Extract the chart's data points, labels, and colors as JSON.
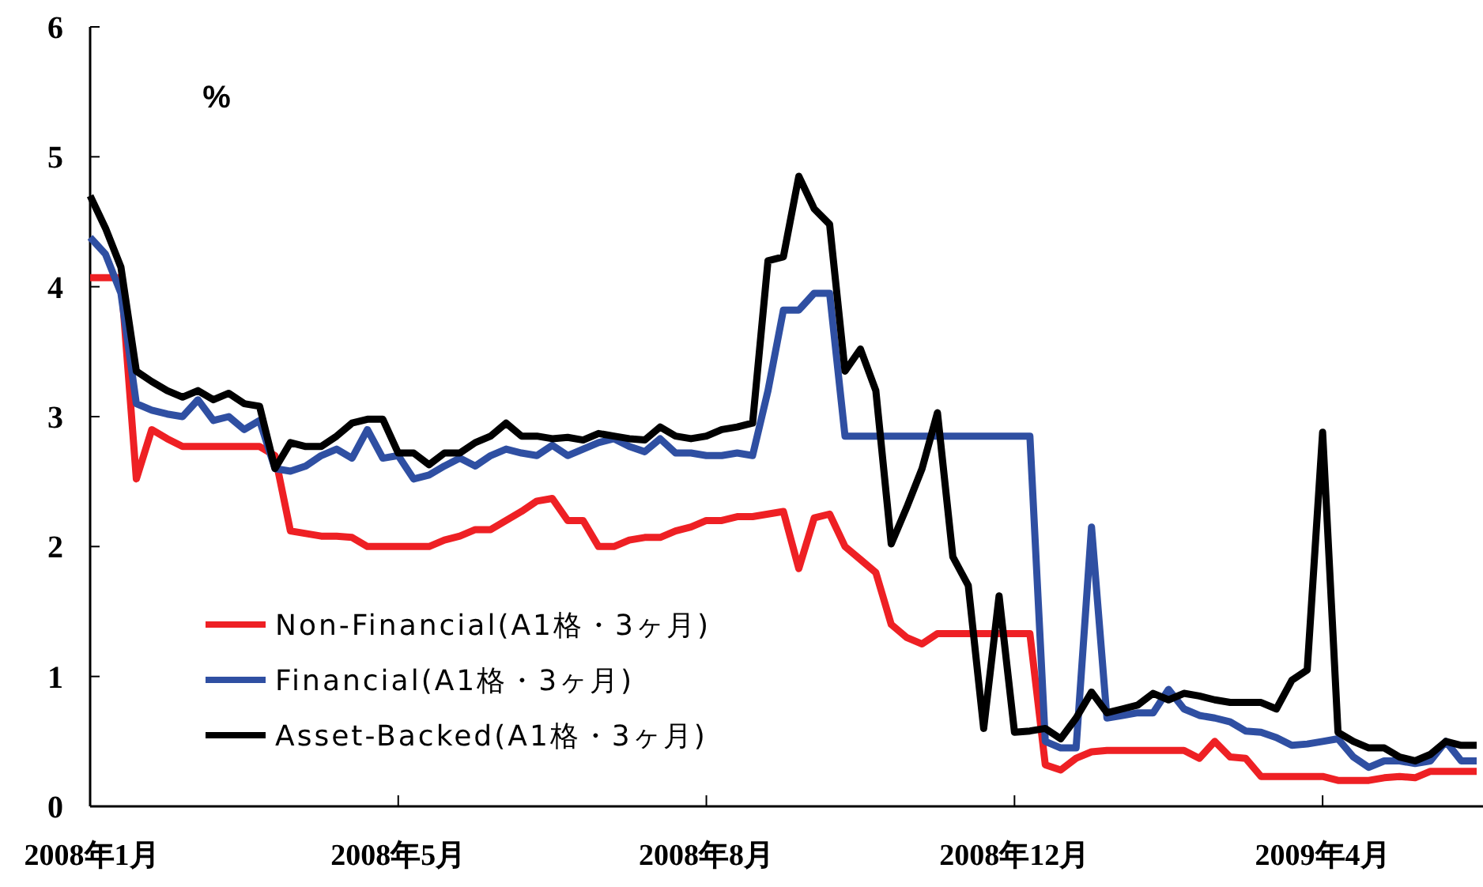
{
  "chart_data": {
    "type": "line",
    "ylabel": "%",
    "categories": [
      "2008年1月",
      null,
      null,
      null,
      null,
      null,
      null,
      null,
      null,
      null,
      null,
      null,
      null,
      null,
      null,
      null,
      null,
      null,
      null,
      null,
      "2008年5月",
      null,
      null,
      null,
      null,
      null,
      null,
      null,
      null,
      null,
      null,
      null,
      null,
      null,
      null,
      null,
      null,
      null,
      null,
      null,
      "2008年8月",
      null,
      null,
      null,
      null,
      null,
      null,
      null,
      null,
      null,
      null,
      null,
      null,
      null,
      null,
      null,
      null,
      null,
      null,
      null,
      "2008年12月",
      null,
      null,
      null,
      null,
      null,
      null,
      null,
      null,
      null,
      null,
      null,
      null,
      null,
      null,
      null,
      null,
      null,
      null,
      null,
      "2009年4月",
      null,
      null,
      null,
      null,
      null,
      null,
      null,
      null,
      null,
      null
    ],
    "ylim": [
      0,
      6
    ],
    "yticks": [
      0,
      1,
      2,
      3,
      4,
      5,
      6
    ],
    "grid": false,
    "legend": "bottom left",
    "marker": "none",
    "line_style": "solid",
    "series": [
      {
        "name": "Non-Financial(A1格・3ヶ月)",
        "color": "#ee2024",
        "values": [
          4.07,
          4.07,
          4.07,
          2.52,
          2.9,
          2.83,
          2.77,
          2.77,
          2.77,
          2.77,
          2.77,
          2.77,
          2.7,
          2.12,
          2.1,
          2.08,
          2.08,
          2.07,
          2.0,
          2.0,
          2.0,
          2.0,
          2.0,
          2.05,
          2.08,
          2.13,
          2.13,
          2.2,
          2.27,
          2.35,
          2.37,
          2.2,
          2.2,
          2.0,
          2.0,
          2.05,
          2.07,
          2.07,
          2.12,
          2.15,
          2.2,
          2.2,
          2.23,
          2.23,
          2.25,
          2.27,
          1.83,
          2.22,
          2.25,
          2.0,
          1.9,
          1.8,
          1.4,
          1.3,
          1.25,
          1.33,
          1.33,
          1.33,
          1.33,
          1.33,
          1.33,
          1.33,
          0.32,
          0.28,
          0.37,
          0.42,
          0.43,
          0.43,
          0.43,
          0.43,
          0.43,
          0.43,
          0.37,
          0.5,
          0.38,
          0.37,
          0.23,
          0.23,
          0.23,
          0.23,
          0.23,
          0.2,
          0.2,
          0.2,
          0.22,
          0.23,
          0.22,
          0.27,
          0.27,
          0.27,
          0.27
        ]
      },
      {
        "name": "Financial(A1格・3ヶ月)",
        "color": "#2f4fa2",
        "values": [
          4.38,
          4.25,
          3.95,
          3.1,
          3.05,
          3.02,
          3.0,
          3.13,
          2.97,
          3.0,
          2.9,
          2.97,
          2.6,
          2.58,
          2.62,
          2.7,
          2.75,
          2.68,
          2.9,
          2.68,
          2.7,
          2.52,
          2.55,
          2.62,
          2.68,
          2.62,
          2.7,
          2.75,
          2.72,
          2.7,
          2.78,
          2.7,
          2.75,
          2.8,
          2.83,
          2.77,
          2.73,
          2.83,
          2.72,
          2.72,
          2.7,
          2.7,
          2.72,
          2.7,
          3.2,
          3.82,
          3.82,
          3.95,
          3.95,
          2.85,
          2.85,
          2.85,
          2.85,
          2.85,
          2.85,
          2.85,
          2.85,
          2.85,
          2.85,
          2.85,
          2.85,
          2.85,
          0.5,
          0.45,
          0.45,
          2.15,
          0.68,
          0.7,
          0.72,
          0.72,
          0.9,
          0.75,
          0.7,
          0.68,
          0.65,
          0.58,
          0.57,
          0.53,
          0.47,
          0.48,
          0.5,
          0.52,
          0.38,
          0.3,
          0.35,
          0.35,
          0.33,
          0.35,
          0.5,
          0.35,
          0.35
        ]
      },
      {
        "name": "Asset-Backed(A1格・3ヶ月)",
        "color": "#000000",
        "values": [
          4.7,
          4.45,
          4.15,
          3.35,
          3.27,
          3.2,
          3.15,
          3.2,
          3.13,
          3.18,
          3.1,
          3.08,
          2.6,
          2.8,
          2.77,
          2.77,
          2.85,
          2.95,
          2.98,
          2.98,
          2.72,
          2.72,
          2.63,
          2.72,
          2.72,
          2.8,
          2.85,
          2.95,
          2.85,
          2.85,
          2.83,
          2.84,
          2.82,
          2.87,
          2.85,
          2.83,
          2.82,
          2.92,
          2.85,
          2.83,
          2.85,
          2.9,
          2.92,
          2.95,
          4.2,
          4.23,
          4.85,
          4.6,
          4.48,
          3.35,
          3.52,
          3.2,
          2.02,
          2.3,
          2.6,
          3.03,
          1.92,
          1.7,
          0.6,
          1.62,
          0.57,
          0.58,
          0.6,
          0.52,
          0.68,
          0.88,
          0.72,
          0.75,
          0.78,
          0.87,
          0.82,
          0.87,
          0.85,
          0.82,
          0.8,
          0.8,
          0.8,
          0.75,
          0.97,
          1.05,
          2.88,
          0.57,
          0.5,
          0.45,
          0.45,
          0.38,
          0.35,
          0.4,
          0.5,
          0.47,
          0.47
        ]
      }
    ]
  }
}
